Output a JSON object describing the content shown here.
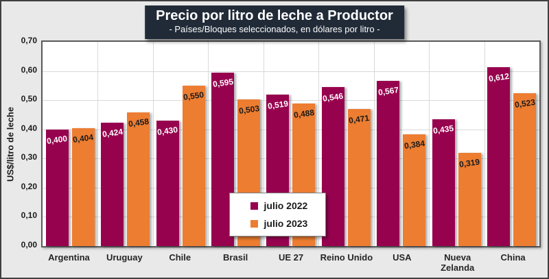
{
  "title": {
    "text": "Precio por litro de leche a Productor",
    "subtitle": "- Países/Bloques seleccionados, en dólares por litro -"
  },
  "colors": {
    "series_2022": "#97024f",
    "series_2023": "#ed7d31",
    "title_background": "#212b38",
    "page_background": "#e9e9e9",
    "plot_border": "#595959",
    "gridline": "#d9d9d9"
  },
  "chart_data": {
    "type": "bar",
    "title": "Precio por litro de leche a Productor",
    "subtitle": "- Países/Bloques seleccionados, en dólares por litro -",
    "categories": [
      "Argentina",
      "Uruguay",
      "Chile",
      "Brasil",
      "UE 27",
      "Reino Unido",
      "USA",
      "Nueva Zelanda",
      "China"
    ],
    "series": [
      {
        "name": "julio 2022",
        "color": "#97024f",
        "label_color": "#ffffff",
        "values": [
          0.4,
          0.424,
          0.43,
          0.595,
          0.519,
          0.546,
          0.567,
          0.435,
          0.612
        ],
        "labels": [
          "0,400",
          "0,424",
          "0,430",
          "0,595",
          "0,519",
          "0,546",
          "0,567",
          "0,435",
          "0,612"
        ]
      },
      {
        "name": "julio 2023",
        "color": "#ed7d31",
        "label_color": "#1a1a1a",
        "values": [
          0.404,
          0.458,
          0.55,
          0.503,
          0.488,
          0.471,
          0.384,
          0.319,
          0.523
        ],
        "labels": [
          "0,404",
          "0,458",
          "0,550",
          "0,503",
          "0,488",
          "0,471",
          "0,384",
          "0,319",
          "0,523"
        ]
      }
    ],
    "xlabel": "",
    "ylabel": "US$/litro de leche",
    "ylim": [
      0,
      0.7
    ],
    "y_tick_step": 0.1,
    "y_tick_labels": [
      "0,70",
      "0,60",
      "0,50",
      "0,40",
      "0,30",
      "0,20",
      "0,10",
      "0,00"
    ],
    "grid": true,
    "legend_position": "inside-bottom-center"
  }
}
